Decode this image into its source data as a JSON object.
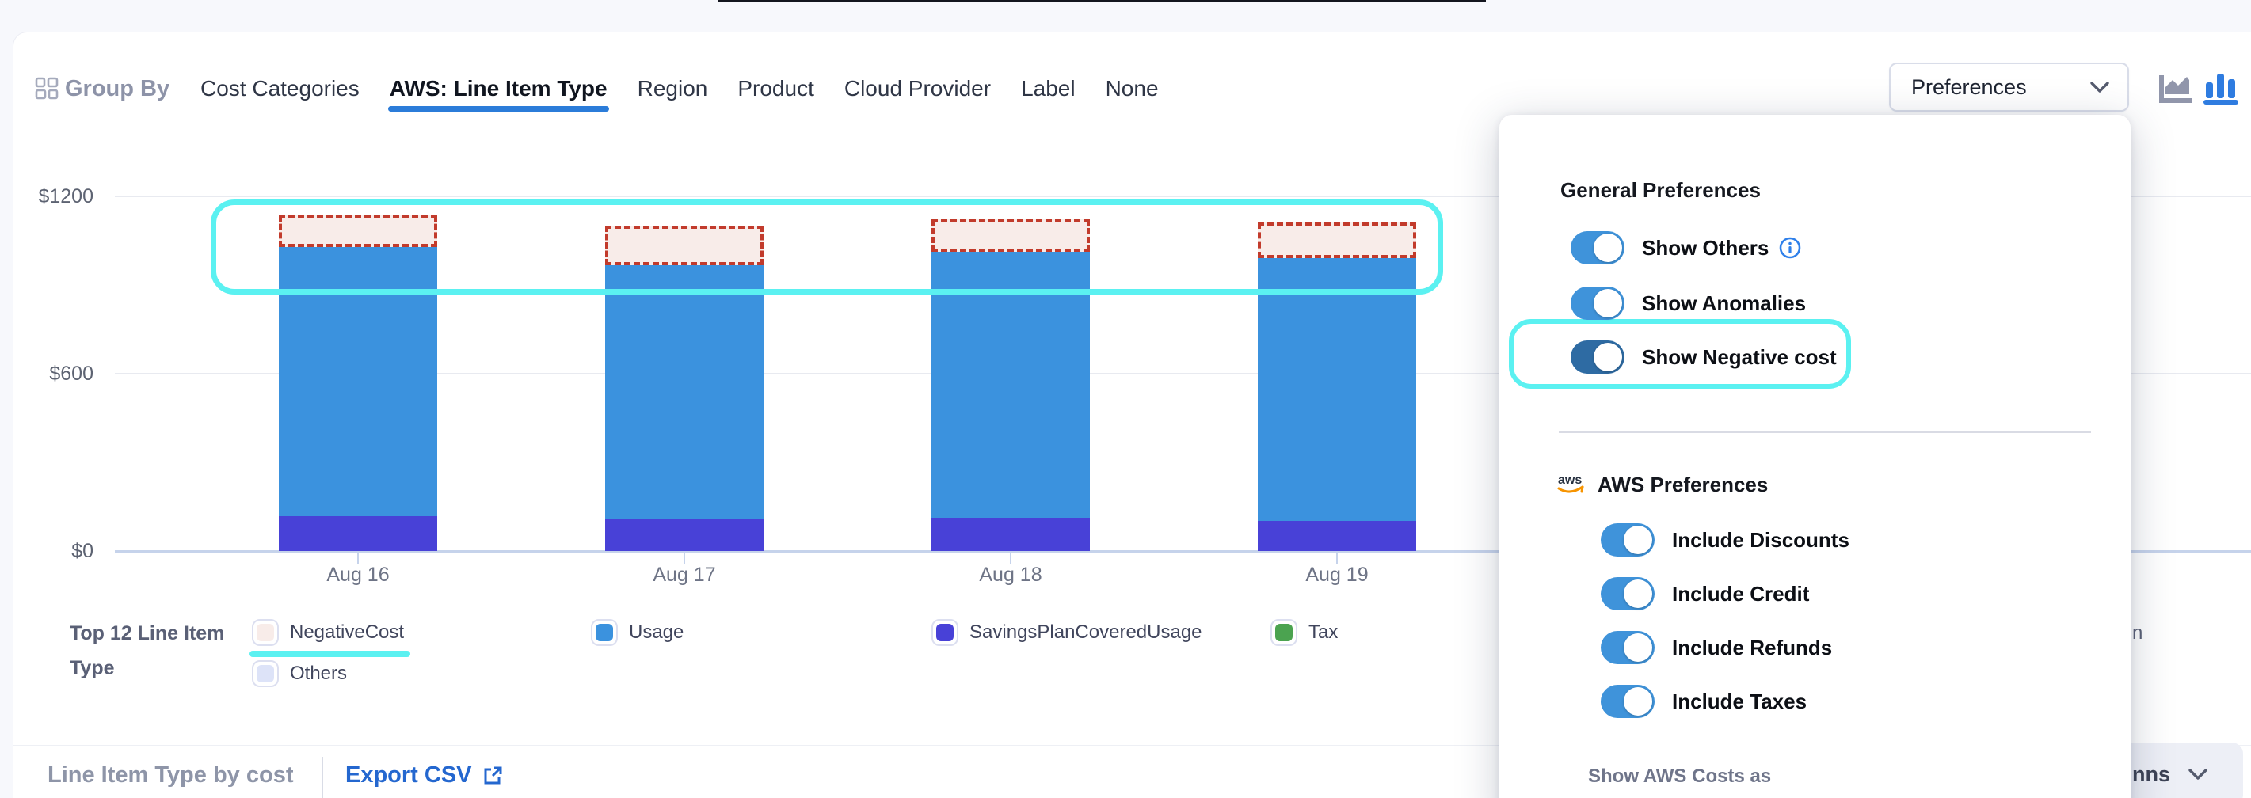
{
  "header": {
    "group_by_label": "Group By",
    "tabs": [
      {
        "label": "Cost Categories",
        "active": false
      },
      {
        "label": "AWS: Line Item Type",
        "active": true
      },
      {
        "label": "Region",
        "active": false
      },
      {
        "label": "Product",
        "active": false
      },
      {
        "label": "Cloud Provider",
        "active": false
      },
      {
        "label": "Label",
        "active": false
      },
      {
        "label": "None",
        "active": false
      }
    ],
    "preferences_button_label": "Preferences",
    "chart_type_toggle": {
      "active": "bar",
      "options": [
        "area-chart",
        "bar-chart"
      ]
    }
  },
  "chart_data": {
    "type": "bar",
    "stacked": true,
    "categories": [
      "Aug 16",
      "Aug 17",
      "Aug 18",
      "Aug 19"
    ],
    "series": [
      {
        "name": "SavingsPlanCoveredUsage",
        "color": "#4841d7",
        "values": [
          118,
          107,
          113,
          102
        ]
      },
      {
        "name": "Usage",
        "color": "#3b92de",
        "values": [
          911,
          860,
          900,
          889
        ]
      },
      {
        "name": "Tax",
        "color": "#4ba350",
        "values": [
          0,
          0,
          0,
          0
        ]
      },
      {
        "name": "Others",
        "color": "#dde3f8",
        "values": [
          0,
          0,
          0,
          0
        ]
      },
      {
        "name": "NegativeCost",
        "color": "#f8ece9",
        "border_color": "#c23b2c",
        "overlay": true,
        "values": [
          -107,
          -134,
          -108,
          -121
        ]
      }
    ],
    "y_ticks": [
      {
        "label": "$1200",
        "value": 1200
      },
      {
        "label": "$600",
        "value": 600
      },
      {
        "label": "$0",
        "value": 0
      }
    ],
    "ylim": [
      0,
      1200
    ],
    "grid": true,
    "legend_position": "bottom",
    "annotation_highlight_color": "#5bf1f1"
  },
  "legend": {
    "title_lines": [
      "Top 12 Line Item",
      "Type"
    ],
    "items": [
      {
        "label": "NegativeCost",
        "fill": "#f8ece9",
        "row": 1,
        "highlighted": true
      },
      {
        "label": "Usage",
        "fill": "#3b92de",
        "row": 1
      },
      {
        "label": "SavingsPlanCoveredUsage",
        "fill": "#4841d7",
        "row": 1
      },
      {
        "label": "Tax",
        "fill": "#4ba350",
        "row": 1
      },
      {
        "label": "Others",
        "fill": "#dde3f8",
        "row": 2
      }
    ],
    "overflow_text": "n"
  },
  "preferences_panel": {
    "general": {
      "heading": "General Preferences",
      "toggles": [
        {
          "label": "Show Others",
          "on": true,
          "info": true
        },
        {
          "label": "Show Anomalies",
          "on": true
        },
        {
          "label": "Show Negative cost",
          "on": true,
          "highlighted": true
        }
      ]
    },
    "aws": {
      "heading": "AWS Preferences",
      "toggles": [
        {
          "label": "Include Discounts",
          "on": true
        },
        {
          "label": "Include Credit",
          "on": true
        },
        {
          "label": "Include Refunds",
          "on": true
        },
        {
          "label": "Include Taxes",
          "on": true
        }
      ]
    },
    "footer_label": "Show AWS Costs as"
  },
  "footer": {
    "section_title": "Line Item Type by cost",
    "export_csv_label": "Export CSV",
    "columns_button_visible_label": "nns"
  },
  "colors": {
    "accent_blue": "#2b7cd9",
    "toggle_on": "#3f93da",
    "toggle_on_dark": "#2e6ba3",
    "cyan_highlight": "#5bf1f1",
    "grid_line": "#e8eaf0",
    "axis_line": "#c6d3eb",
    "negative_dashed": "#c23b2c",
    "info_blue": "#2f80ea"
  }
}
